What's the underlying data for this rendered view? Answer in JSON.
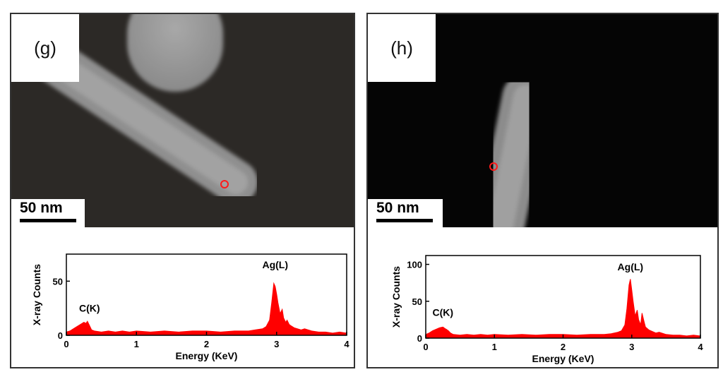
{
  "panels": [
    {
      "label": "(g)",
      "scale_bar": "50 nm",
      "chart_data": {
        "type": "line",
        "xlabel": "Energy (KeV)",
        "ylabel": "X-ray Counts",
        "xlim": [
          0,
          4
        ],
        "ylim": [
          0,
          75
        ],
        "xticks": [
          0,
          1,
          2,
          3,
          4
        ],
        "yticks": [
          0,
          50
        ],
        "color": "#ff0000",
        "annotations": [
          {
            "text": "C(K)",
            "x": 0.33,
            "y": 22
          },
          {
            "text": "Ag(L)",
            "x": 2.98,
            "y": 62
          }
        ],
        "x": [
          0.0,
          0.05,
          0.1,
          0.15,
          0.2,
          0.25,
          0.28,
          0.3,
          0.33,
          0.36,
          0.4,
          0.5,
          0.6,
          0.7,
          0.8,
          0.9,
          1.0,
          1.2,
          1.4,
          1.6,
          1.8,
          2.0,
          2.2,
          2.4,
          2.6,
          2.7,
          2.8,
          2.85,
          2.9,
          2.93,
          2.96,
          2.98,
          3.0,
          3.02,
          3.05,
          3.08,
          3.1,
          3.13,
          3.15,
          3.18,
          3.2,
          3.25,
          3.3,
          3.35,
          3.4,
          3.5,
          3.6,
          3.7,
          3.8,
          3.9,
          4.0
        ],
        "y": [
          3,
          4,
          6,
          8,
          10,
          12,
          11,
          13,
          9,
          5,
          4,
          3,
          4,
          3,
          4,
          3,
          4,
          3,
          4,
          3,
          4,
          4,
          3,
          4,
          4,
          5,
          6,
          8,
          14,
          30,
          48,
          45,
          38,
          30,
          20,
          24,
          16,
          12,
          14,
          10,
          9,
          7,
          6,
          5,
          6,
          4,
          3,
          3,
          2,
          3,
          2
        ]
      }
    },
    {
      "label": "(h)",
      "scale_bar": "50 nm",
      "chart_data": {
        "type": "line",
        "xlabel": "Energy (KeV)",
        "ylabel": "X-ray Counts",
        "xlim": [
          0,
          4
        ],
        "ylim": [
          0,
          112
        ],
        "xticks": [
          0,
          1,
          2,
          3,
          4
        ],
        "yticks": [
          0,
          50,
          100
        ],
        "color": "#ff0000",
        "annotations": [
          {
            "text": "C(K)",
            "x": 0.25,
            "y": 30
          },
          {
            "text": "Ag(L)",
            "x": 2.98,
            "y": 92
          }
        ],
        "x": [
          0.0,
          0.05,
          0.1,
          0.15,
          0.2,
          0.25,
          0.28,
          0.3,
          0.33,
          0.36,
          0.4,
          0.5,
          0.6,
          0.7,
          0.8,
          0.9,
          1.0,
          1.2,
          1.4,
          1.6,
          1.8,
          2.0,
          2.2,
          2.4,
          2.6,
          2.7,
          2.8,
          2.85,
          2.9,
          2.93,
          2.96,
          2.98,
          3.0,
          3.02,
          3.05,
          3.08,
          3.1,
          3.13,
          3.15,
          3.18,
          3.2,
          3.25,
          3.3,
          3.35,
          3.4,
          3.5,
          3.6,
          3.7,
          3.8,
          3.9,
          4.0
        ],
        "y": [
          5,
          7,
          10,
          12,
          14,
          15,
          13,
          12,
          10,
          7,
          5,
          4,
          5,
          4,
          5,
          4,
          5,
          4,
          5,
          4,
          5,
          5,
          4,
          5,
          5,
          6,
          8,
          10,
          18,
          40,
          72,
          80,
          65,
          50,
          30,
          38,
          25,
          18,
          34,
          22,
          15,
          11,
          9,
          7,
          8,
          5,
          4,
          4,
          3,
          4,
          3
        ]
      }
    }
  ]
}
